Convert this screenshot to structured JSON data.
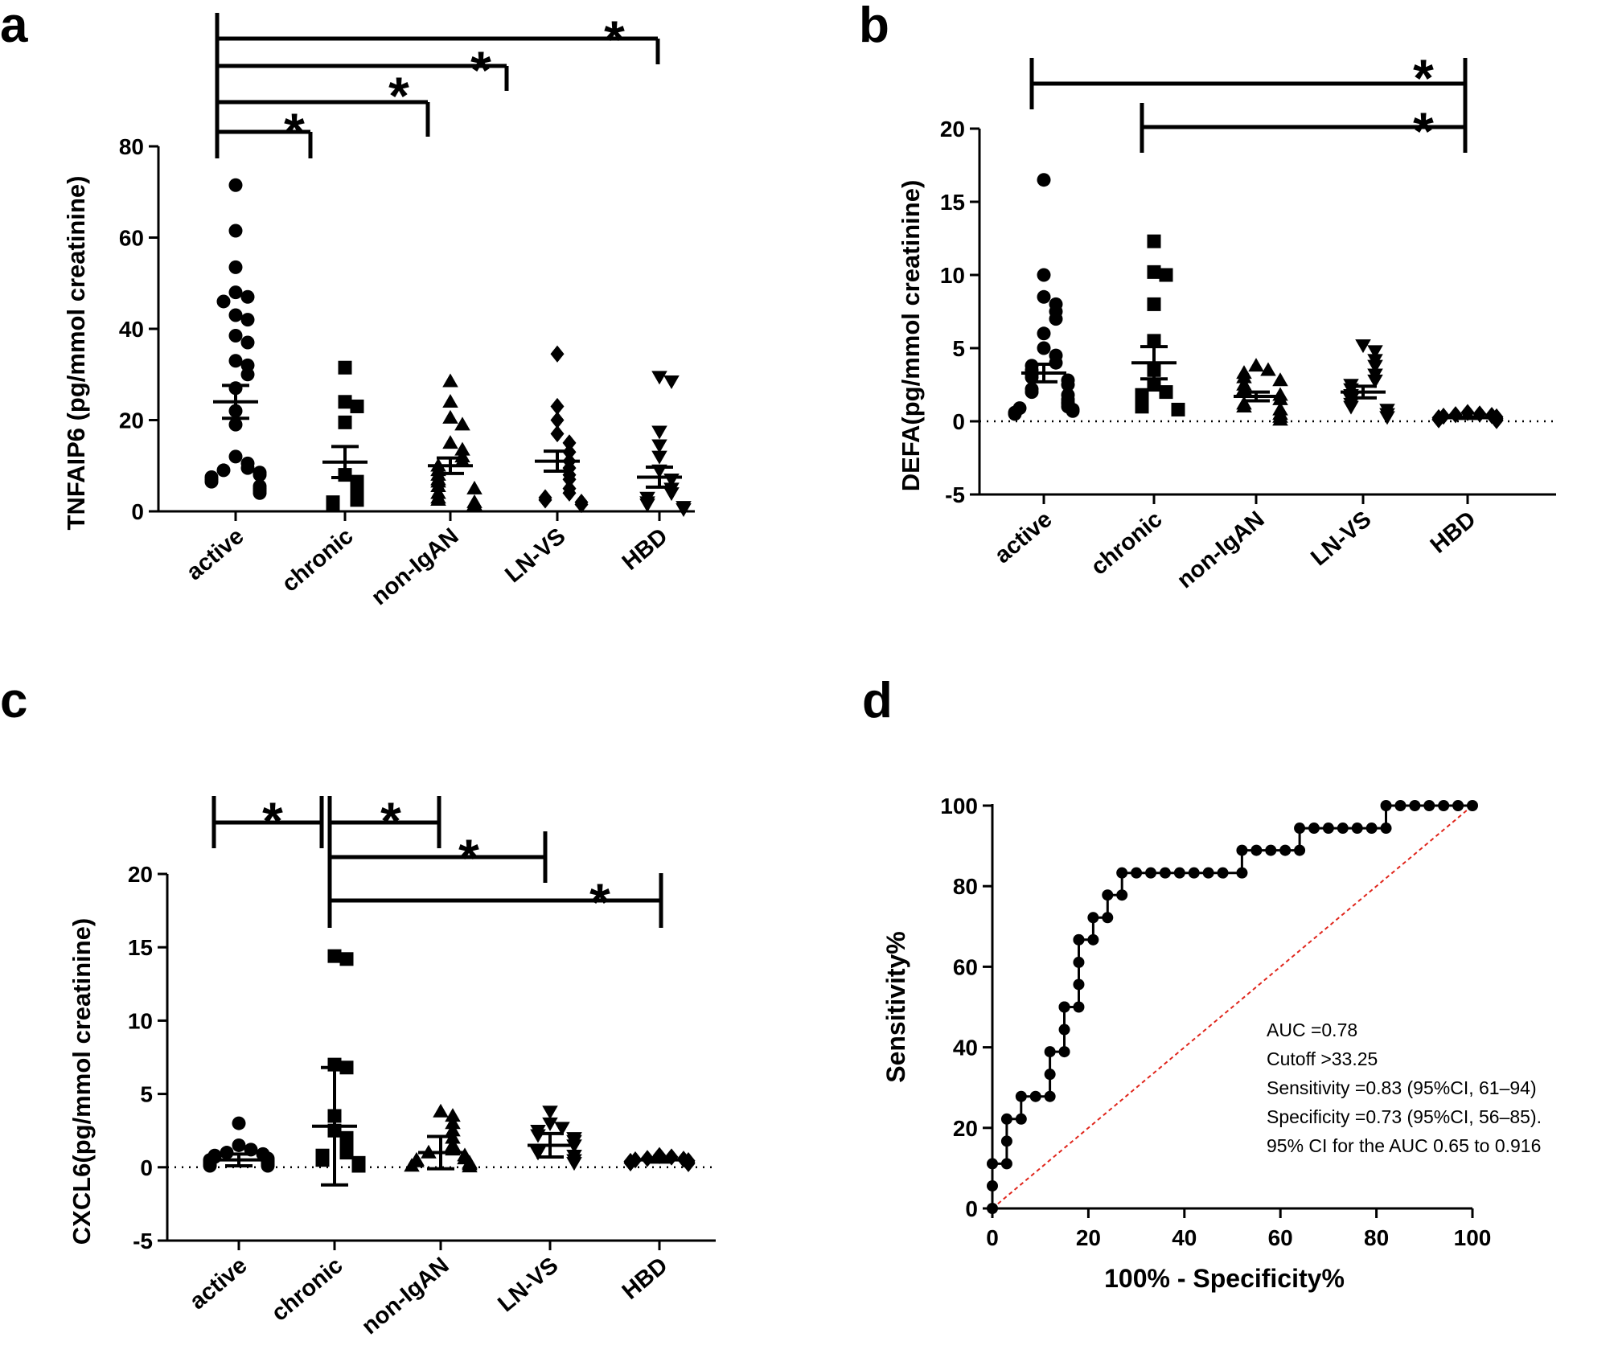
{
  "chart_data": [
    {
      "panel": "a",
      "type": "scatter",
      "ylabel": "TNFAIP6 (pg/mmol creatinine)",
      "categories": [
        "active",
        "chronic",
        "non-IgAN",
        "LN-VS",
        "HBD"
      ],
      "ylim": [
        0,
        80
      ],
      "yticks": [
        0,
        20,
        40,
        60,
        80
      ],
      "zero_line": false,
      "markers": [
        "circle",
        "square",
        "triangle-up",
        "diamond",
        "triangle-down"
      ],
      "groups": [
        {
          "name": "active",
          "mean": 24.0,
          "sem": 3.6,
          "values": [
            71.5,
            61.5,
            53.5,
            48,
            47,
            46,
            43,
            42,
            38.5,
            37,
            33,
            32,
            30,
            27,
            22,
            19,
            12,
            10.5,
            9.5,
            9,
            8.5,
            8,
            7.5,
            7,
            6.5,
            5.5,
            5,
            4.5,
            4
          ]
        },
        {
          "name": "chronic",
          "mean": 10.8,
          "sem": 3.4,
          "values": [
            31.5,
            24,
            23,
            19.5,
            8,
            6.5,
            5,
            4,
            2.5,
            2,
            1.5
          ]
        },
        {
          "name": "non-IgAN",
          "mean": 10.0,
          "sem": 1.7,
          "values": [
            28.5,
            24,
            20.5,
            19,
            15,
            13.5,
            12,
            11,
            10,
            9,
            8,
            7,
            6.5,
            5.5,
            5,
            4,
            3,
            2.5,
            2,
            1.5
          ]
        },
        {
          "name": "LN-VS",
          "mean": 11.0,
          "sem": 2.2,
          "values": [
            34.5,
            23,
            20,
            17,
            15,
            13,
            11,
            9.5,
            8,
            7,
            5,
            4,
            3,
            2.5,
            2,
            1.5
          ]
        },
        {
          "name": "HBD",
          "mean": 7.5,
          "sem": 2.2,
          "values": [
            29.5,
            28.5,
            17.5,
            14.5,
            12,
            9,
            7,
            5,
            4,
            3,
            2,
            1.5,
            1,
            0.5
          ]
        }
      ],
      "significance": [
        {
          "from": "active",
          "to": "chronic",
          "label": "*"
        },
        {
          "from": "active",
          "to": "non-IgAN",
          "label": "*"
        },
        {
          "from": "active",
          "to": "LN-VS",
          "label": "*"
        },
        {
          "from": "active",
          "to": "HBD",
          "label": "*"
        }
      ]
    },
    {
      "panel": "b",
      "type": "scatter",
      "ylabel": "DEFA(pg/mmol creatinine)",
      "categories": [
        "active",
        "chronic",
        "non-IgAN",
        "LN-VS",
        "HBD"
      ],
      "ylim": [
        -5,
        20
      ],
      "yticks": [
        -5,
        0,
        5,
        10,
        15,
        20
      ],
      "zero_line": true,
      "markers": [
        "circle",
        "square",
        "triangle-up",
        "triangle-down",
        "diamond"
      ],
      "groups": [
        {
          "name": "active",
          "mean": 3.3,
          "sem": 0.6,
          "values": [
            16.5,
            10,
            8.5,
            8,
            7.5,
            7,
            6,
            5,
            4.5,
            4,
            3.8,
            3.5,
            3.2,
            3,
            2.8,
            2.5,
            2.2,
            2,
            1.8,
            1.5,
            1.3,
            1.2,
            1,
            0.9,
            0.8,
            0.7,
            0.6,
            0.5
          ]
        },
        {
          "name": "chronic",
          "mean": 4.0,
          "sem": 1.1,
          "values": [
            12.3,
            10.2,
            10,
            8,
            5.5,
            3.5,
            2.5,
            2,
            1.8,
            1.5,
            1.2,
            1,
            0.8
          ]
        },
        {
          "name": "non-IgAN",
          "mean": 1.7,
          "sem": 0.3,
          "values": [
            3.8,
            3.5,
            3.3,
            3,
            2.8,
            2.5,
            2.2,
            2,
            1.8,
            1.5,
            1.2,
            1,
            0.8,
            0.5,
            0.3,
            0.1
          ]
        },
        {
          "name": "LN-VS",
          "mean": 2.0,
          "sem": 0.4,
          "values": [
            5.2,
            4.8,
            4.2,
            3.8,
            3.2,
            2.8,
            2.5,
            2.2,
            1.8,
            1.5,
            1.2,
            1,
            0.8,
            0.5,
            0.3
          ]
        },
        {
          "name": "HBD",
          "mean": 0.25,
          "sem": 0.05,
          "values": [
            0.6,
            0.5,
            0.45,
            0.4,
            0.35,
            0.3,
            0.25,
            0.2,
            0.15,
            0.1,
            0.1,
            0.05
          ]
        }
      ],
      "significance": [
        {
          "from": "active",
          "to": "HBD",
          "label": "*"
        },
        {
          "from": "chronic",
          "to": "HBD",
          "label": "*"
        }
      ]
    },
    {
      "panel": "c",
      "type": "scatter",
      "ylabel": "CXCL6(pg/mmol creatinine)",
      "categories": [
        "active",
        "chronic",
        "non-IgAN",
        "LN-VS",
        "HBD"
      ],
      "ylim": [
        -5,
        20
      ],
      "yticks": [
        -5,
        0,
        5,
        10,
        15,
        20
      ],
      "zero_line": true,
      "markers": [
        "circle",
        "square",
        "triangle-up",
        "triangle-down",
        "diamond"
      ],
      "groups": [
        {
          "name": "active",
          "mean": 0.5,
          "sd": 0.4,
          "values": [
            3,
            1.5,
            1.2,
            1,
            0.9,
            0.8,
            0.7,
            0.6,
            0.5,
            0.5,
            0.4,
            0.4,
            0.3,
            0.3,
            0.2,
            0.2,
            0.1,
            0.1
          ]
        },
        {
          "name": "chronic",
          "mean": 2.8,
          "sd": 4.0,
          "values": [
            14.4,
            14.2,
            7,
            6.8,
            3.5,
            2.5,
            2,
            1.5,
            1,
            0.8,
            0.5,
            0.3,
            0.1
          ]
        },
        {
          "name": "non-IgAN",
          "mean": 1.0,
          "sd": 1.1,
          "values": [
            3.8,
            3.5,
            3,
            2.5,
            2,
            1.5,
            1.2,
            1,
            0.8,
            0.6,
            0.5,
            0.4,
            0.3,
            0.2,
            0.1,
            0.05
          ]
        },
        {
          "name": "LN-VS",
          "mean": 1.5,
          "sd": 0.8,
          "values": [
            3.8,
            3,
            2.7,
            2.5,
            2.2,
            2,
            1.8,
            1.5,
            1.2,
            1,
            0.8,
            0.5,
            0.3
          ]
        },
        {
          "name": "HBD",
          "mean": 0.5,
          "sd": 0.15,
          "values": [
            0.8,
            0.7,
            0.6,
            0.55,
            0.5,
            0.45,
            0.4,
            0.35,
            0.3,
            0.25
          ]
        }
      ],
      "significance": [
        {
          "from": "active",
          "to": "chronic",
          "label": "*"
        },
        {
          "from": "chronic",
          "to": "non-IgAN",
          "label": "*"
        },
        {
          "from": "chronic",
          "to": "LN-VS",
          "label": "*"
        },
        {
          "from": "chronic",
          "to": "HBD",
          "label": "*"
        }
      ]
    },
    {
      "panel": "d",
      "type": "line",
      "xlabel": "100% - Specificity%",
      "ylabel": "Sensitivity%",
      "xlim": [
        0,
        100
      ],
      "ylim": [
        0,
        100
      ],
      "xticks": [
        0,
        20,
        40,
        60,
        80,
        100
      ],
      "yticks": [
        0,
        20,
        40,
        60,
        80,
        100
      ],
      "reference_line": {
        "color": "#e0261c",
        "style": "dashed",
        "points": [
          [
            0,
            0
          ],
          [
            100,
            100
          ]
        ]
      },
      "series": [
        {
          "name": "ROC",
          "x": [
            0,
            0,
            0,
            3,
            3,
            3,
            6,
            6,
            9,
            12,
            12,
            12,
            15,
            15,
            15,
            15,
            18,
            18,
            18,
            18,
            18,
            21,
            21,
            24,
            24,
            27,
            27,
            30,
            33,
            36,
            39,
            42,
            45,
            48,
            52,
            52,
            55,
            58,
            61,
            64,
            64,
            67,
            70,
            73,
            76,
            79,
            82,
            82,
            85,
            88,
            91,
            94,
            97,
            100
          ],
          "y": [
            0,
            5.6,
            11.1,
            11.1,
            16.7,
            22.2,
            22.2,
            27.8,
            27.8,
            27.8,
            33.3,
            38.9,
            38.9,
            44.4,
            50,
            50,
            50,
            55.6,
            61.1,
            66.7,
            66.7,
            66.7,
            72.2,
            72.2,
            77.8,
            77.8,
            83.3,
            83.3,
            83.3,
            83.3,
            83.3,
            83.3,
            83.3,
            83.3,
            83.3,
            88.9,
            88.9,
            88.9,
            88.9,
            88.9,
            94.4,
            94.4,
            94.4,
            94.4,
            94.4,
            94.4,
            94.4,
            100,
            100,
            100,
            100,
            100,
            100,
            100
          ]
        }
      ],
      "annotations": [
        "AUC =0.78",
        "Cutoff >33.25",
        "Sensitivity =0.83 (95%CI, 61–94)",
        "Specificity =0.73 (95%CI, 56–85).",
        "95% CI for the AUC 0.65 to 0.916"
      ]
    }
  ]
}
